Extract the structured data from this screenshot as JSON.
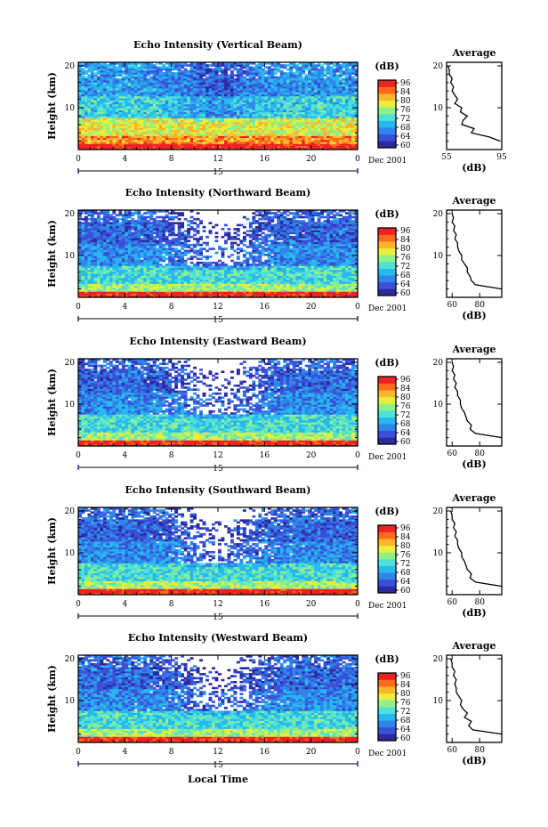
{
  "chart_data": {
    "type": "heatmap",
    "x_label": "Local Time",
    "x_ticks": [
      "0",
      "4",
      "8",
      "12",
      "16",
      "20",
      "0"
    ],
    "date_marker": "15",
    "date_label": "Dec 2001",
    "y_label": "Height (km)",
    "y_ticks": [
      "10",
      "20"
    ],
    "colorbar_unit": "(dB)",
    "colorbar_ticks": [
      "96",
      "84",
      "80",
      "76",
      "72",
      "68",
      "64",
      "60"
    ],
    "colormap": [
      "#2b2b9e",
      "#3b4fd8",
      "#2f86e8",
      "#27b8f0",
      "#4fe0d6",
      "#8ef08a",
      "#e8ee3a",
      "#ffb52a",
      "#ff6a1e",
      "#ee2222"
    ],
    "average_title": "Average",
    "average_xlabel": "(dB)",
    "average_yticks": [
      "10",
      "20"
    ],
    "panels": [
      {
        "title": "Echo Intensity (Vertical Beam)",
        "avg_xticks": [
          "55",
          "95"
        ],
        "avg_xlim": [
          55,
          95
        ],
        "avg_profile": {
          "height_km": [
            2,
            3,
            4,
            5,
            6,
            7,
            8,
            9,
            10,
            11,
            12,
            13,
            14,
            15,
            16,
            17,
            18,
            19,
            20
          ],
          "db": [
            94,
            86,
            73,
            75,
            66,
            67,
            70,
            65,
            66,
            61,
            63,
            61,
            59,
            60,
            58,
            59,
            57,
            57,
            56
          ]
        }
      },
      {
        "title": "Echo Intensity (Northward Beam)",
        "avg_xticks": [
          "60",
          "80"
        ],
        "avg_xlim": [
          56,
          96
        ],
        "avg_profile": {
          "height_km": [
            2,
            3,
            4,
            5,
            6,
            7,
            8,
            9,
            10,
            11,
            12,
            13,
            14,
            15,
            16,
            17,
            18,
            19,
            20
          ],
          "db": [
            96,
            77,
            74,
            73,
            71,
            71,
            69,
            67,
            67,
            65,
            64,
            64,
            62,
            63,
            61,
            62,
            60,
            61,
            60
          ]
        }
      },
      {
        "title": "Echo Intensity (Eastward Beam)",
        "avg_xticks": [
          "60",
          "80"
        ],
        "avg_xlim": [
          56,
          96
        ],
        "avg_profile": {
          "height_km": [
            2,
            3,
            4,
            5,
            6,
            7,
            8,
            9,
            10,
            11,
            12,
            13,
            14,
            15,
            16,
            17,
            18,
            19,
            20
          ],
          "db": [
            96,
            77,
            73,
            74,
            71,
            70,
            69,
            67,
            66,
            66,
            64,
            64,
            62,
            63,
            61,
            62,
            60,
            61,
            60
          ]
        }
      },
      {
        "title": "Echo Intensity (Southward Beam)",
        "avg_xticks": [
          "60",
          "80"
        ],
        "avg_xlim": [
          56,
          96
        ],
        "avg_profile": {
          "height_km": [
            2,
            3,
            4,
            5,
            6,
            7,
            8,
            9,
            10,
            11,
            12,
            13,
            14,
            15,
            16,
            17,
            18,
            19,
            20
          ],
          "db": [
            96,
            77,
            73,
            74,
            71,
            70,
            69,
            67,
            67,
            65,
            64,
            64,
            62,
            63,
            61,
            62,
            60,
            60,
            59
          ]
        }
      },
      {
        "title": "Echo Intensity (Westward Beam)",
        "avg_xticks": [
          "60",
          "80"
        ],
        "avg_xlim": [
          56,
          96
        ],
        "avg_profile": {
          "height_km": [
            2,
            3,
            4,
            5,
            6,
            7,
            8,
            9,
            10,
            11,
            12,
            13,
            14,
            15,
            16,
            17,
            18,
            19,
            20
          ],
          "db": [
            96,
            75,
            72,
            74,
            69,
            71,
            68,
            66,
            67,
            65,
            63,
            63,
            62,
            63,
            61,
            62,
            60,
            60,
            59
          ]
        }
      }
    ]
  }
}
